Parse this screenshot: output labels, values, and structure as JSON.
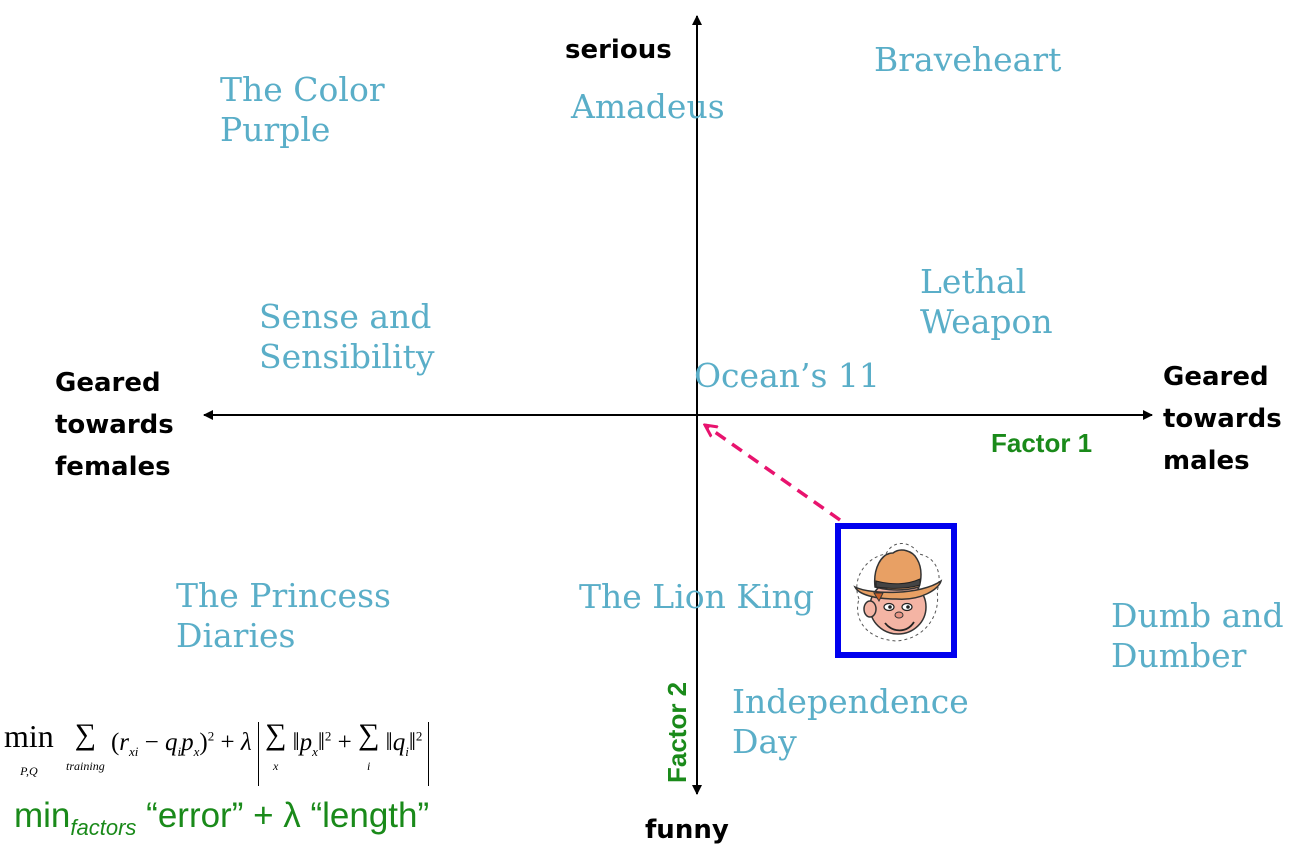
{
  "axes": {
    "top": "serious",
    "bottom": "funny",
    "left": [
      "Geared",
      "towards",
      "females"
    ],
    "right": [
      "Geared",
      "towards",
      "males"
    ],
    "factor1": "Factor 1",
    "factor2": "Factor 2"
  },
  "movies": {
    "color_purple": [
      "The Color",
      "Purple"
    ],
    "amadeus": "Amadeus",
    "braveheart": "Braveheart",
    "lethal_weapon": [
      "Lethal",
      "Weapon"
    ],
    "sense_sensibility": [
      "Sense and",
      "Sensibility"
    ],
    "oceans11": "Ocean’s 11",
    "princess_diaries": [
      "The Princess",
      "Diaries"
    ],
    "lion_king": "The Lion King",
    "dumb_dumber": [
      "Dumb and",
      "Dumber"
    ],
    "independence_day": [
      "Independence",
      "Day"
    ]
  },
  "formula": {
    "min": "min",
    "min_sub": "P,Q",
    "training_sub": "training",
    "x_sub": "x",
    "i_sub": "i",
    "words_min": "min",
    "words_sub": "factors",
    "words_rest": " “error” + λ “length”"
  },
  "colors": {
    "movie_text": "#5aaec8",
    "factor_text": "#1a8a1a",
    "user_box": "#0000ee",
    "arrow": "#e8136e"
  },
  "icons": {
    "user": "cowboy-face-icon"
  }
}
